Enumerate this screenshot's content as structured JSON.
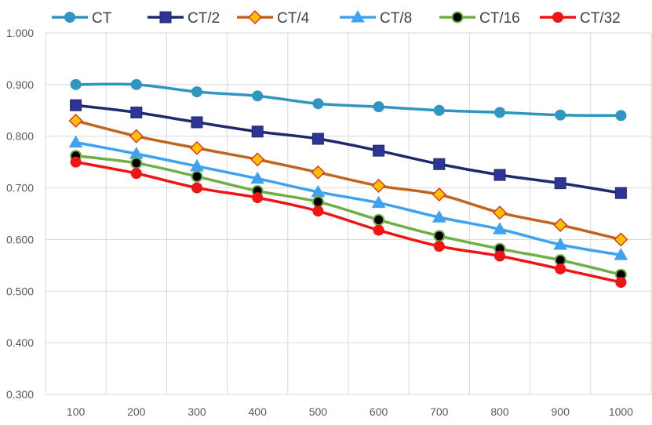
{
  "chart_data": {
    "type": "line",
    "title": "",
    "xlabel": "",
    "ylabel": "",
    "x": [
      100,
      200,
      300,
      400,
      500,
      600,
      700,
      800,
      900,
      1000
    ],
    "x_tick_labels": [
      "100",
      "200",
      "300",
      "400",
      "500",
      "600",
      "700",
      "800",
      "900",
      "1000"
    ],
    "ylim": [
      0.3,
      1.0
    ],
    "y_ticks": [
      0.3,
      0.4,
      0.5,
      0.6,
      0.7,
      0.8,
      0.9,
      1.0
    ],
    "y_tick_labels": [
      "0.300",
      "0.400",
      "0.500",
      "0.600",
      "0.700",
      "0.800",
      "0.900",
      "1.000"
    ],
    "grid": true,
    "legend_position": "top",
    "series": [
      {
        "name": "CT",
        "color": "#2E96C0",
        "marker": "circle",
        "marker_fill": "#2E96C0",
        "marker_stroke": "#2E96C0",
        "values": [
          0.9,
          0.9,
          0.886,
          0.878,
          0.863,
          0.857,
          0.85,
          0.846,
          0.841,
          0.84
        ]
      },
      {
        "name": "CT/2",
        "color": "#1F2A6E",
        "marker": "square",
        "marker_fill": "#2E3596",
        "marker_stroke": "#1F2A6E",
        "values": [
          0.86,
          0.846,
          0.827,
          0.809,
          0.795,
          0.772,
          0.746,
          0.725,
          0.709,
          0.69
        ]
      },
      {
        "name": "CT/4",
        "color": "#C0641E",
        "marker": "diamond",
        "marker_fill": "#FFC000",
        "marker_stroke": "#E0251B",
        "values": [
          0.83,
          0.8,
          0.777,
          0.755,
          0.73,
          0.704,
          0.687,
          0.652,
          0.628,
          0.6
        ]
      },
      {
        "name": "CT/8",
        "color": "#3FA2F0",
        "marker": "triangle",
        "marker_fill": "#3FA2F0",
        "marker_stroke": "#3FA2F0",
        "values": [
          0.788,
          0.766,
          0.742,
          0.718,
          0.692,
          0.671,
          0.643,
          0.62,
          0.59,
          0.57
        ]
      },
      {
        "name": "CT/16",
        "color": "#6FAF46",
        "marker": "circle",
        "marker_fill": "#000000",
        "marker_stroke": "#6FAF46",
        "values": [
          0.762,
          0.748,
          0.722,
          0.694,
          0.673,
          0.638,
          0.607,
          0.582,
          0.56,
          0.532
        ]
      },
      {
        "name": "CT/32",
        "color": "#F01414",
        "marker": "circle",
        "marker_fill": "#F01414",
        "marker_stroke": "#F01414",
        "values": [
          0.75,
          0.728,
          0.7,
          0.681,
          0.655,
          0.618,
          0.587,
          0.568,
          0.543,
          0.517
        ]
      }
    ]
  }
}
